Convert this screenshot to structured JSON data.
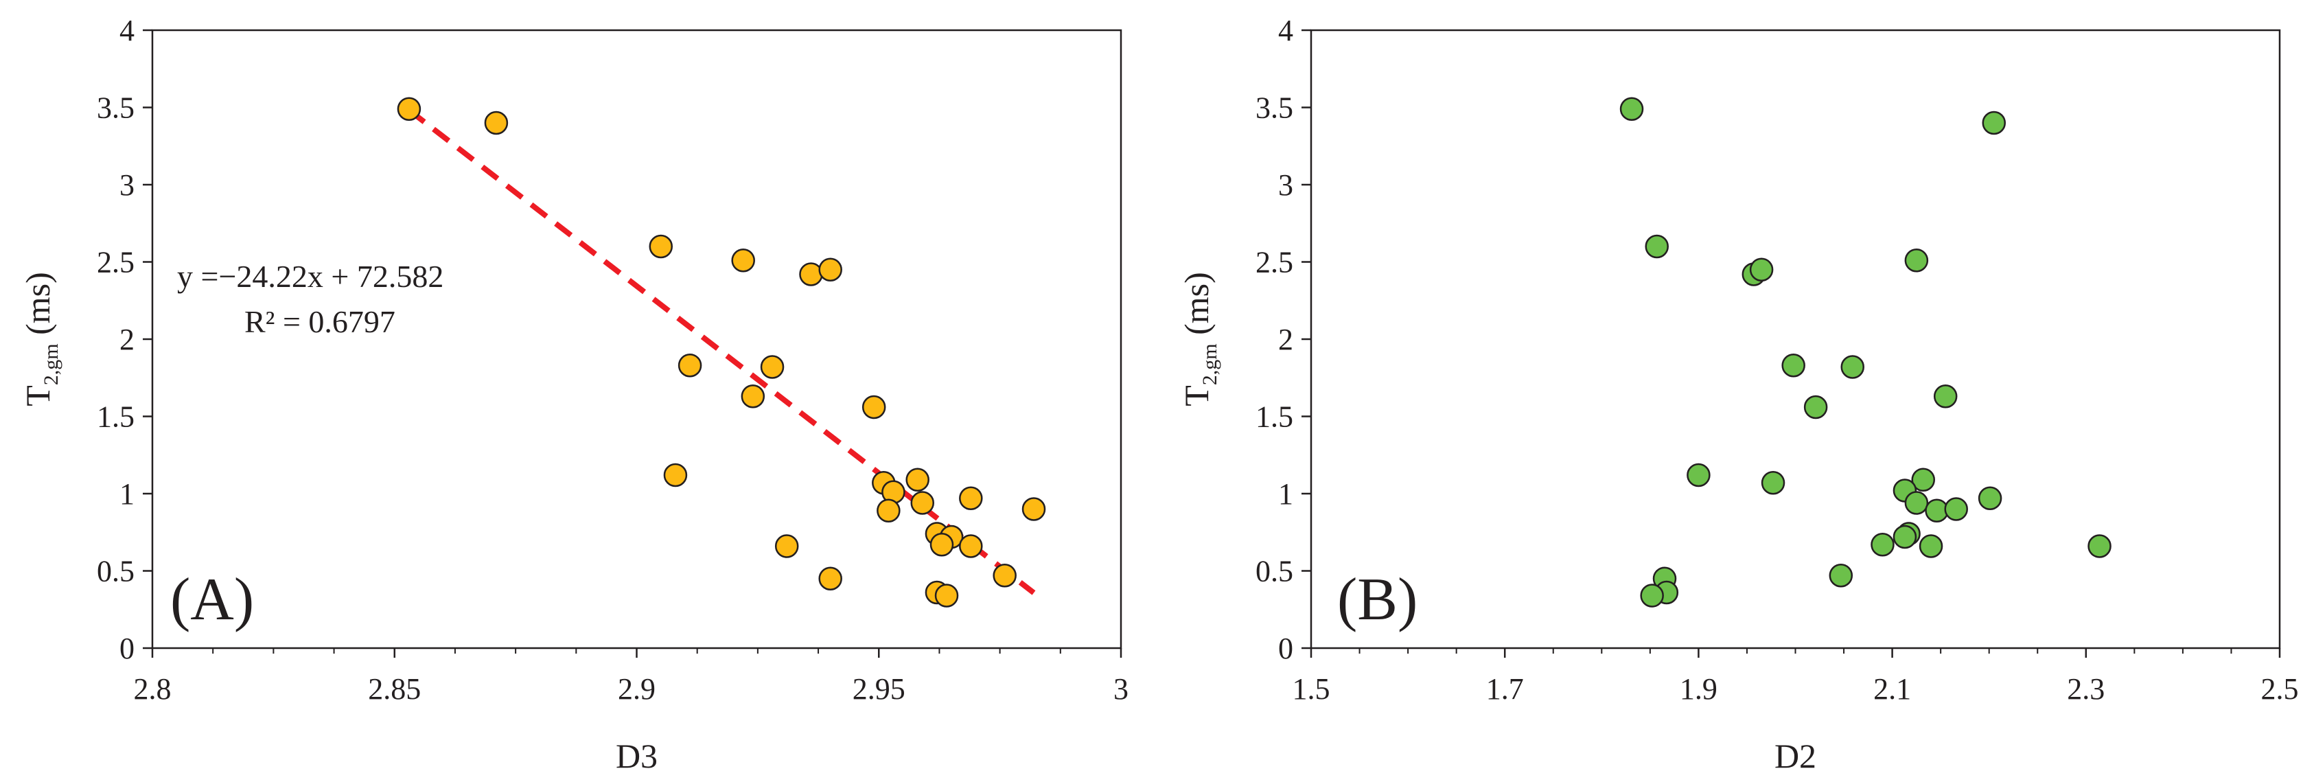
{
  "chart_data": [
    {
      "type": "scatter",
      "panel_label": "(A)",
      "xlabel": "D3",
      "ylabel": {
        "main": "T",
        "sub": "2,gm",
        "unit": " (ms)"
      },
      "xlim": [
        2.8,
        3.0
      ],
      "ylim": [
        0,
        4
      ],
      "xticks": [
        2.8,
        2.85,
        2.9,
        2.95,
        3.0
      ],
      "xtick_labels": [
        "2.8",
        "2.85",
        "2.9",
        "2.95",
        "3"
      ],
      "yticks": [
        0,
        0.5,
        1,
        1.5,
        2,
        2.5,
        3,
        3.5,
        4
      ],
      "ytick_labels": [
        "0",
        "0.5",
        "1",
        "1.5",
        "2",
        "2.5",
        "3",
        "3.5",
        "4"
      ],
      "marker_color": "#fdb913",
      "trendline": {
        "slope": -24.22,
        "intercept": 72.582,
        "x_range": [
          2.853,
          2.982
        ],
        "color": "#ed1c24",
        "style": "dashed",
        "equation": "y =−24.22x + 72.582",
        "r2": "R² = 0.6797"
      },
      "points": [
        [
          2.853,
          3.49
        ],
        [
          2.871,
          3.4
        ],
        [
          2.905,
          2.6
        ],
        [
          2.922,
          2.51
        ],
        [
          2.936,
          2.42
        ],
        [
          2.94,
          2.45
        ],
        [
          2.911,
          1.83
        ],
        [
          2.928,
          1.82
        ],
        [
          2.924,
          1.63
        ],
        [
          2.949,
          1.56
        ],
        [
          2.908,
          1.12
        ],
        [
          2.951,
          1.07
        ],
        [
          2.958,
          1.09
        ],
        [
          2.953,
          1.01
        ],
        [
          2.959,
          0.94
        ],
        [
          2.952,
          0.89
        ],
        [
          2.969,
          0.97
        ],
        [
          2.982,
          0.9
        ],
        [
          2.962,
          0.74
        ],
        [
          2.965,
          0.72
        ],
        [
          2.963,
          0.67
        ],
        [
          2.969,
          0.66
        ],
        [
          2.931,
          0.66
        ],
        [
          2.976,
          0.47
        ],
        [
          2.94,
          0.45
        ],
        [
          2.962,
          0.36
        ],
        [
          2.964,
          0.34
        ]
      ]
    },
    {
      "type": "scatter",
      "panel_label": "(B)",
      "xlabel": "D2",
      "ylabel": {
        "main": "T",
        "sub": "2,gm",
        "unit": " (ms)"
      },
      "xlim": [
        1.5,
        2.5
      ],
      "ylim": [
        0,
        4
      ],
      "xticks": [
        1.5,
        1.7,
        1.9,
        2.1,
        2.3,
        2.5
      ],
      "xtick_labels": [
        "1.5",
        "1.7",
        "1.9",
        "2.1",
        "2.3",
        "2.5"
      ],
      "yticks": [
        0,
        0.5,
        1,
        1.5,
        2,
        2.5,
        3,
        3.5,
        4
      ],
      "ytick_labels": [
        "0",
        "0.5",
        "1",
        "1.5",
        "2",
        "2.5",
        "3",
        "3.5",
        "4"
      ],
      "marker_color": "#6cc04a",
      "points": [
        [
          1.831,
          3.49
        ],
        [
          2.205,
          3.4
        ],
        [
          1.857,
          2.6
        ],
        [
          2.125,
          2.51
        ],
        [
          1.957,
          2.42
        ],
        [
          1.965,
          2.45
        ],
        [
          1.998,
          1.83
        ],
        [
          2.059,
          1.82
        ],
        [
          2.155,
          1.63
        ],
        [
          2.021,
          1.56
        ],
        [
          1.9,
          1.12
        ],
        [
          1.977,
          1.07
        ],
        [
          2.132,
          1.09
        ],
        [
          2.113,
          1.02
        ],
        [
          2.125,
          0.94
        ],
        [
          2.146,
          0.89
        ],
        [
          2.201,
          0.97
        ],
        [
          2.166,
          0.9
        ],
        [
          2.117,
          0.74
        ],
        [
          2.113,
          0.72
        ],
        [
          2.09,
          0.67
        ],
        [
          2.14,
          0.66
        ],
        [
          2.314,
          0.66
        ],
        [
          2.047,
          0.47
        ],
        [
          1.865,
          0.45
        ],
        [
          1.867,
          0.36
        ],
        [
          1.852,
          0.34
        ]
      ]
    }
  ]
}
